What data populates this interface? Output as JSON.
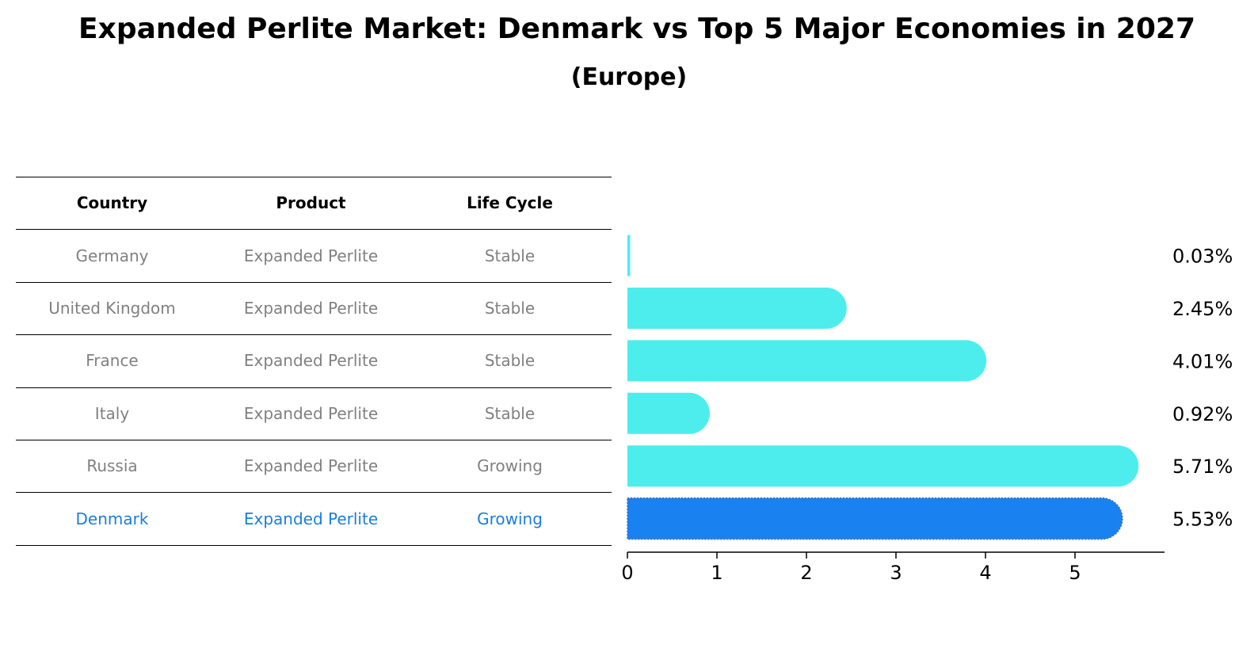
{
  "title": "Expanded Perlite Market: Denmark vs Top 5 Major Economies in 2027",
  "subtitle": "(Europe)",
  "table": {
    "columns": [
      "Country",
      "Product",
      "Life Cycle"
    ],
    "rows": [
      {
        "country": "Germany",
        "product": "Expanded Perlite",
        "life_cycle": "Stable"
      },
      {
        "country": "United Kingdom",
        "product": "Expanded Perlite",
        "life_cycle": "Stable"
      },
      {
        "country": "France",
        "product": "Expanded Perlite",
        "life_cycle": "Stable"
      },
      {
        "country": "Italy",
        "product": "Expanded Perlite",
        "life_cycle": "Stable"
      },
      {
        "country": "Russia",
        "product": "Expanded Perlite",
        "life_cycle": "Growing"
      },
      {
        "country": "Denmark",
        "product": "Expanded Perlite",
        "life_cycle": "Growing"
      }
    ]
  },
  "colors": {
    "bar": "#4deded",
    "highlight": "#1a82f0",
    "highlight_text": "#1a7ee0",
    "muted_text": "#808080"
  },
  "chart_data": {
    "type": "bar",
    "orientation": "horizontal",
    "categories": [
      "Germany",
      "United Kingdom",
      "France",
      "Italy",
      "Russia",
      "Denmark"
    ],
    "values": [
      0.03,
      2.45,
      4.01,
      0.92,
      5.71,
      5.53
    ],
    "value_labels": [
      "0.03%",
      "2.45%",
      "4.01%",
      "0.92%",
      "5.71%",
      "5.53%"
    ],
    "highlight": "Denmark",
    "xticks": [
      0,
      1,
      2,
      3,
      4,
      5
    ],
    "xlim": [
      0,
      6
    ],
    "xlabel": "",
    "ylabel": ""
  }
}
